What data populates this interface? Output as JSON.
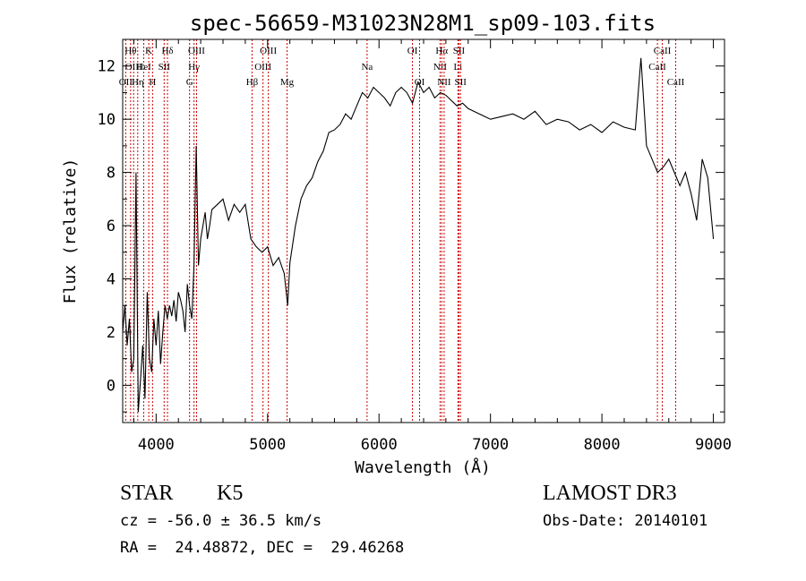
{
  "chart_data": {
    "type": "line",
    "title": "spec-56659-M31023N28M1_sp09-103.fits",
    "xlabel": "Wavelength (Å)",
    "ylabel": "Flux (relative)",
    "xlim": [
      3700,
      9100
    ],
    "ylim": [
      -1.4,
      13.0
    ],
    "x_ticks": [
      4000,
      5000,
      6000,
      7000,
      8000,
      9000
    ],
    "x_tick_labels": [
      "4000",
      "5000",
      "6000",
      "7000",
      "8000",
      "9000"
    ],
    "y_ticks": [
      0,
      2,
      4,
      6,
      8,
      10,
      12
    ],
    "y_tick_labels": [
      "0",
      "2",
      "4",
      "6",
      "8",
      "10",
      "12"
    ],
    "grid": false,
    "series": [
      {
        "color": "#000000",
        "x": [
          3700,
          3720,
          3740,
          3760,
          3780,
          3800,
          3820,
          3840,
          3860,
          3880,
          3900,
          3920,
          3940,
          3960,
          3980,
          4000,
          4020,
          4040,
          4060,
          4080,
          4100,
          4120,
          4140,
          4160,
          4180,
          4200,
          4220,
          4240,
          4260,
          4280,
          4300,
          4320,
          4340,
          4360,
          4380,
          4400,
          4420,
          4440,
          4460,
          4480,
          4500,
          4550,
          4600,
          4650,
          4700,
          4750,
          4800,
          4850,
          4900,
          4950,
          5000,
          5050,
          5100,
          5150,
          5180,
          5200,
          5250,
          5300,
          5350,
          5400,
          5450,
          5500,
          5550,
          5600,
          5650,
          5700,
          5750,
          5800,
          5850,
          5900,
          5950,
          6000,
          6050,
          6100,
          6150,
          6200,
          6250,
          6300,
          6350,
          6400,
          6450,
          6500,
          6550,
          6600,
          6650,
          6700,
          6750,
          6800,
          6900,
          7000,
          7100,
          7200,
          7300,
          7400,
          7500,
          7600,
          7700,
          7800,
          7900,
          8000,
          8100,
          8200,
          8300,
          8350,
          8400,
          8450,
          8500,
          8550,
          8600,
          8650,
          8700,
          8750,
          8800,
          8850,
          8900,
          8950,
          9000
        ],
        "values": [
          2.0,
          3.0,
          1.5,
          2.5,
          0.5,
          1.0,
          8.0,
          -1.0,
          0.2,
          1.5,
          -0.5,
          3.5,
          1.0,
          0.5,
          2.5,
          1.5,
          2.8,
          0.8,
          2.0,
          3.0,
          2.5,
          3.0,
          2.6,
          3.2,
          2.4,
          3.5,
          3.2,
          2.8,
          2.0,
          3.8,
          3.0,
          2.5,
          4.5,
          9.0,
          4.5,
          5.5,
          6.0,
          6.5,
          5.5,
          6.0,
          6.6,
          6.8,
          7.0,
          6.2,
          6.8,
          6.5,
          6.8,
          5.5,
          5.2,
          5.0,
          5.2,
          4.5,
          4.8,
          4.2,
          3.0,
          4.6,
          6.0,
          7.0,
          7.5,
          7.8,
          8.4,
          8.8,
          9.5,
          9.6,
          9.8,
          10.2,
          10.0,
          10.5,
          11.0,
          10.8,
          11.2,
          11.0,
          10.8,
          10.5,
          11.0,
          11.2,
          11.0,
          10.6,
          11.4,
          11.0,
          11.2,
          10.8,
          11.0,
          10.9,
          10.7,
          10.5,
          10.6,
          10.4,
          10.2,
          10.0,
          10.1,
          10.2,
          10.0,
          10.3,
          9.8,
          10.0,
          9.9,
          9.6,
          9.8,
          9.5,
          9.9,
          9.7,
          9.6,
          12.3,
          9.0,
          8.5,
          8.0,
          8.2,
          8.5,
          8.0,
          7.5,
          8.0,
          7.2,
          6.2,
          8.5,
          7.8,
          5.5
        ]
      }
    ],
    "line_markers": [
      {
        "x": 3771,
        "labels": [
          "Hθ"
        ],
        "row": 0
      },
      {
        "x": 3727,
        "labels": [
          "OII"
        ],
        "row": 2
      },
      {
        "x": 3798,
        "labels": [
          "OIII"
        ],
        "row": 1
      },
      {
        "x": 3835,
        "labels": [
          "Hη"
        ],
        "row": 2
      },
      {
        "x": 3889,
        "labels": [
          "HeI"
        ],
        "row": 1
      },
      {
        "x": 3934,
        "labels": [
          "K"
        ],
        "row": 0
      },
      {
        "x": 3968,
        "labels": [
          "H"
        ],
        "row": 2
      },
      {
        "x": 4072,
        "labels": [
          "SII"
        ],
        "row": 1
      },
      {
        "x": 4102,
        "labels": [
          "Hδ"
        ],
        "row": 0
      },
      {
        "x": 4300,
        "labels": [
          "G"
        ],
        "row": 2
      },
      {
        "x": 4340,
        "labels": [
          "Hγ"
        ],
        "row": 1
      },
      {
        "x": 4363,
        "labels": [
          "OIII"
        ],
        "row": 0
      },
      {
        "x": 4861,
        "labels": [
          "Hβ"
        ],
        "row": 2
      },
      {
        "x": 4959,
        "labels": [
          "OIII"
        ],
        "row": 1
      },
      {
        "x": 5007,
        "labels": [
          "OIII"
        ],
        "row": 0
      },
      {
        "x": 5175,
        "labels": [
          "Mg"
        ],
        "row": 2
      },
      {
        "x": 5893,
        "labels": [
          "Na"
        ],
        "row": 1
      },
      {
        "x": 6300,
        "labels": [
          "OI"
        ],
        "row": 0
      },
      {
        "x": 6364,
        "labels": [
          "OI"
        ],
        "row": 2
      },
      {
        "x": 6548,
        "labels": [
          "NII"
        ],
        "row": 1
      },
      {
        "x": 6563,
        "labels": [
          "Hα"
        ],
        "row": 0
      },
      {
        "x": 6584,
        "labels": [
          "NII"
        ],
        "row": 2
      },
      {
        "x": 6708,
        "labels": [
          "Li"
        ],
        "row": 1
      },
      {
        "x": 6717,
        "labels": [
          "SII"
        ],
        "row": 0
      },
      {
        "x": 6731,
        "labels": [
          "SII"
        ],
        "row": 2
      },
      {
        "x": 8498,
        "labels": [
          "CaII"
        ],
        "row": 1
      },
      {
        "x": 8542,
        "labels": [
          "CaII"
        ],
        "row": 0
      },
      {
        "x": 8662,
        "labels": [
          "CaII"
        ],
        "row": 2
      }
    ],
    "marker_color": "#cc0000"
  },
  "info": {
    "object_class": "STAR",
    "subclass": "K5",
    "survey": "LAMOST DR3",
    "redshift": "cz = -56.0 ± 36.5 km/s",
    "obs_date": "Obs-Date: 20140101",
    "coords": "RA =  24.48872, DEC =  29.46268"
  }
}
